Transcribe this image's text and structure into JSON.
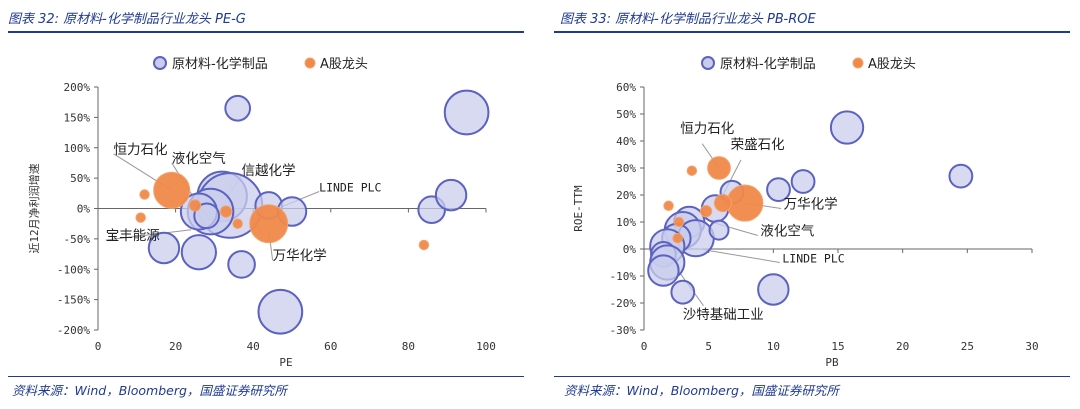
{
  "colors": {
    "accent": "#1f3a93",
    "bubble_fill": "#c9cdec",
    "bubble_stroke": "#5c62c0",
    "leader_fill": "#f0894a",
    "leader_stroke": "#f4a36d"
  },
  "panels": [
    {
      "title": "图表 32: 原材料-化学制品行业龙头 PE-G",
      "source": "资料来源：Wind，Bloomberg，国盛证券研究所"
    },
    {
      "title": "图表 33: 原材料-化学制品行业龙头 PB-ROE",
      "source": "资料来源：Wind，Bloomberg，国盛证券研究所"
    }
  ],
  "chart_data": [
    {
      "type": "scatter",
      "title": "",
      "xlabel": "PE",
      "ylabel": "近12月净利润增速",
      "xlim": [
        0,
        100
      ],
      "ylim": [
        -2.0,
        2.0
      ],
      "x_ticks": [
        0,
        20,
        40,
        60,
        80,
        100
      ],
      "x_tick_labels": [
        "0",
        "20",
        "40",
        "60",
        "80",
        "100"
      ],
      "y_ticks": [
        2.0,
        1.5,
        1.0,
        0.5,
        0.0,
        -0.5,
        -1.0,
        -1.5,
        -2.0
      ],
      "y_tick_labels": [
        "200%",
        "150%",
        "100%",
        "50%",
        "0%",
        "-50%",
        "-100%",
        "-150%",
        "-200%"
      ],
      "legend": [
        "原材料-化学制品",
        "A股龙头"
      ],
      "legend_position": "top",
      "series": [
        {
          "name": "原材料-化学制品",
          "role": "bubble",
          "points": [
            {
              "x": 36,
              "y": 1.65,
              "size": 1.3
            },
            {
              "x": 95,
              "y": 1.58,
              "size": 2.3
            },
            {
              "x": 32,
              "y": 0.2,
              "size": 2.6
            },
            {
              "x": 34,
              "y": 0.05,
              "size": 3.4
            },
            {
              "x": 29,
              "y": -0.05,
              "size": 2.4
            },
            {
              "x": 26,
              "y": -0.05,
              "size": 1.9
            },
            {
              "x": 28,
              "y": -0.12,
              "size": 1.3
            },
            {
              "x": 44,
              "y": 0.05,
              "size": 1.4
            },
            {
              "x": 50,
              "y": -0.05,
              "size": 1.5
            },
            {
              "x": 86,
              "y": -0.02,
              "size": 1.4
            },
            {
              "x": 91,
              "y": 0.22,
              "size": 1.6
            },
            {
              "x": 17,
              "y": -0.65,
              "size": 1.6
            },
            {
              "x": 26,
              "y": -0.72,
              "size": 1.8
            },
            {
              "x": 37,
              "y": -0.92,
              "size": 1.4
            },
            {
              "x": 47,
              "y": -1.7,
              "size": 2.3
            }
          ]
        },
        {
          "name": "A股龙头",
          "role": "leader",
          "points": [
            {
              "x": 19,
              "y": 0.3,
              "size": 1.9
            },
            {
              "x": 12,
              "y": 0.23,
              "size": 0.5
            },
            {
              "x": 25,
              "y": 0.05,
              "size": 0.6
            },
            {
              "x": 33,
              "y": -0.05,
              "size": 0.6
            },
            {
              "x": 36,
              "y": -0.25,
              "size": 0.5
            },
            {
              "x": 44,
              "y": -0.25,
              "size": 2.0
            },
            {
              "x": 11,
              "y": -0.15,
              "size": 0.5
            },
            {
              "x": 84,
              "y": -0.6,
              "size": 0.5
            }
          ]
        }
      ],
      "annotations": [
        {
          "text": "恒力石化",
          "x": 4,
          "y": 0.9,
          "mono": false
        },
        {
          "text": "液化空气",
          "x": 19,
          "y": 0.75,
          "mono": false
        },
        {
          "text": "信越化学",
          "x": 37,
          "y": 0.55,
          "mono": false
        },
        {
          "text": "LINDE PLC",
          "x": 57,
          "y": 0.28,
          "mono": true
        },
        {
          "text": "宝丰能源",
          "x": 2,
          "y": -0.52,
          "mono": false
        },
        {
          "text": "万华化学",
          "x": 45,
          "y": -0.85,
          "mono": false
        }
      ]
    },
    {
      "type": "scatter",
      "title": "",
      "xlabel": "PB",
      "ylabel": "ROE-TTM",
      "xlim": [
        0,
        30
      ],
      "ylim": [
        -0.3,
        0.6
      ],
      "x_ticks": [
        0,
        5,
        10,
        15,
        20,
        25,
        30
      ],
      "x_tick_labels": [
        "0",
        "5",
        "10",
        "15",
        "20",
        "25",
        "30"
      ],
      "y_ticks": [
        0.6,
        0.5,
        0.4,
        0.3,
        0.2,
        0.1,
        0.0,
        -0.1,
        -0.2,
        -0.3
      ],
      "y_tick_labels": [
        "60%",
        "50%",
        "40%",
        "30%",
        "20%",
        "10%",
        "0%",
        "-10%",
        "-20%",
        "-30%"
      ],
      "legend": [
        "原材料-化学制品",
        "A股龙头"
      ],
      "legend_position": "top",
      "series": [
        {
          "name": "原材料-化学制品",
          "role": "bubble",
          "points": [
            {
              "x": 15.7,
              "y": 0.45,
              "size": 1.7
            },
            {
              "x": 24.5,
              "y": 0.27,
              "size": 1.2
            },
            {
              "x": 12.3,
              "y": 0.25,
              "size": 1.2
            },
            {
              "x": 10.4,
              "y": 0.22,
              "size": 1.2
            },
            {
              "x": 6.8,
              "y": 0.21,
              "size": 1.2
            },
            {
              "x": 5.5,
              "y": 0.15,
              "size": 1.4
            },
            {
              "x": 3.5,
              "y": 0.1,
              "size": 1.6
            },
            {
              "x": 3.0,
              "y": 0.07,
              "size": 1.9
            },
            {
              "x": 4.0,
              "y": 0.04,
              "size": 1.9
            },
            {
              "x": 2.5,
              "y": 0.04,
              "size": 1.5
            },
            {
              "x": 1.8,
              "y": 0.01,
              "size": 1.8
            },
            {
              "x": 1.5,
              "y": -0.02,
              "size": 1.3
            },
            {
              "x": 1.8,
              "y": -0.05,
              "size": 1.8
            },
            {
              "x": 1.5,
              "y": -0.08,
              "size": 1.6
            },
            {
              "x": 5.8,
              "y": 0.07,
              "size": 1.0
            },
            {
              "x": 3.0,
              "y": -0.16,
              "size": 1.2
            },
            {
              "x": 10.0,
              "y": -0.15,
              "size": 1.6
            }
          ]
        },
        {
          "name": "A股龙头",
          "role": "leader",
          "points": [
            {
              "x": 5.8,
              "y": 0.3,
              "size": 1.2
            },
            {
              "x": 7.8,
              "y": 0.17,
              "size": 1.9
            },
            {
              "x": 6.1,
              "y": 0.17,
              "size": 0.9
            },
            {
              "x": 3.7,
              "y": 0.29,
              "size": 0.5
            },
            {
              "x": 4.8,
              "y": 0.14,
              "size": 0.6
            },
            {
              "x": 1.9,
              "y": 0.16,
              "size": 0.5
            },
            {
              "x": 2.7,
              "y": 0.1,
              "size": 0.5
            },
            {
              "x": 2.6,
              "y": 0.04,
              "size": 0.5
            }
          ]
        }
      ],
      "annotations": [
        {
          "text": "恒力石化",
          "x": 2.8,
          "y": 0.43,
          "mono": false
        },
        {
          "text": "荣盛石化",
          "x": 6.7,
          "y": 0.37,
          "mono": false
        },
        {
          "text": "万华化学",
          "x": 10.8,
          "y": 0.15,
          "mono": false
        },
        {
          "text": "液化空气",
          "x": 9.0,
          "y": 0.05,
          "mono": false
        },
        {
          "text": "LINDE PLC",
          "x": 10.7,
          "y": -0.05,
          "mono": true
        },
        {
          "text": "沙特基础工业",
          "x": 3.0,
          "y": -0.26,
          "mono": false
        }
      ]
    }
  ]
}
